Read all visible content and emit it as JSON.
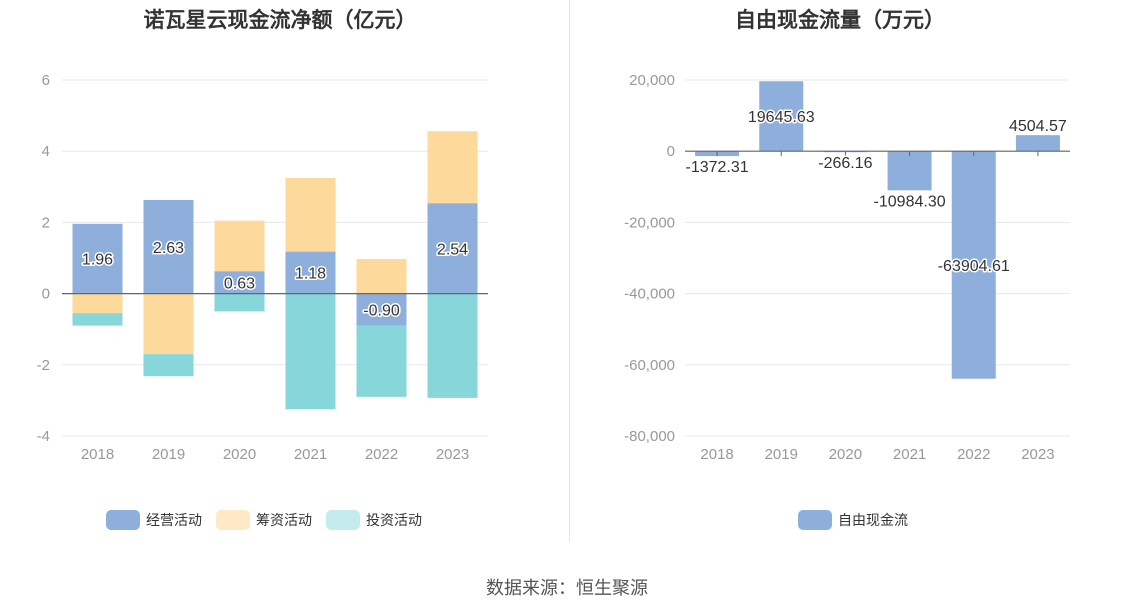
{
  "source_text": "数据来源：恒生聚源",
  "chart_data": [
    {
      "type": "bar",
      "stacked": true,
      "title": "诺瓦星云现金流净额（亿元）",
      "categories": [
        "2018",
        "2019",
        "2020",
        "2021",
        "2022",
        "2023"
      ],
      "ylim": [
        -4,
        6
      ],
      "yticks": [
        -4,
        -2,
        0,
        2,
        4,
        6
      ],
      "grid": true,
      "legend_position": "bottom",
      "series": [
        {
          "name": "经营活动",
          "color": "#8eaedc",
          "values": [
            1.96,
            2.63,
            0.63,
            1.18,
            -0.9,
            2.54
          ],
          "labels": [
            "1.96",
            "2.63",
            "0.63",
            "1.18",
            "-0.90",
            "2.54"
          ]
        },
        {
          "name": "筹资活动",
          "color": "#fdd99b",
          "values": [
            -0.55,
            -1.7,
            1.42,
            2.07,
            0.97,
            2.02
          ]
        },
        {
          "name": "投资活动",
          "color": "#87d6da",
          "values": [
            -0.35,
            -0.62,
            -0.5,
            -3.25,
            -2.0,
            -2.93
          ]
        }
      ]
    },
    {
      "type": "bar",
      "title": "自由现金流量（万元）",
      "categories": [
        "2018",
        "2019",
        "2020",
        "2021",
        "2022",
        "2023"
      ],
      "ylim": [
        -80000,
        20000
      ],
      "yticks": [
        -80000,
        -60000,
        -40000,
        -20000,
        0,
        20000
      ],
      "ytick_labels": [
        "-80,000",
        "-60,000",
        "-40,000",
        "-20,000",
        "0",
        "20,000"
      ],
      "grid": true,
      "legend_position": "bottom",
      "series": [
        {
          "name": "自由现金流",
          "color": "#8eaedc",
          "values": [
            -1372.31,
            19645.63,
            -266.16,
            -10984.3,
            -63904.61,
            4504.57
          ],
          "labels": [
            "-1372.31",
            "19645.63",
            "-266.16",
            "-10984.30",
            "-63904.61",
            "4504.57"
          ]
        }
      ]
    }
  ]
}
